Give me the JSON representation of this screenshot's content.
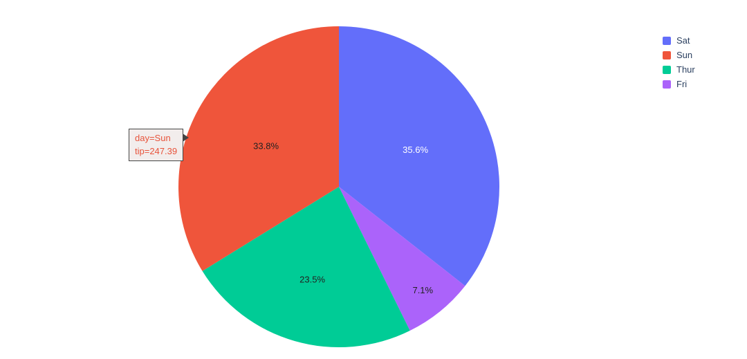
{
  "chart_data": {
    "type": "pie",
    "title": "",
    "slices": [
      {
        "label": "Sat",
        "value": 35.6,
        "pct_label": "35.6%",
        "color": "#636EFA",
        "text_color": "#ffffff",
        "label_radius_frac": 0.53
      },
      {
        "label": "Sun",
        "value": 33.8,
        "pct_label": "33.8%",
        "color": "#EF553B",
        "text_color": "#222222",
        "label_radius_frac": 0.52
      },
      {
        "label": "Thur",
        "value": 23.5,
        "pct_label": "23.5%",
        "color": "#00CC96",
        "text_color": "#222222",
        "label_radius_frac": 0.6
      },
      {
        "label": "Fri",
        "value": 7.1,
        "pct_label": "7.1%",
        "color": "#AB63FA",
        "text_color": "#222222",
        "label_radius_frac": 0.83
      }
    ],
    "draw_order_clockwise_from_top": [
      "Sat",
      "Fri",
      "Thur",
      "Sun"
    ],
    "legend": {
      "position": "top-right",
      "items": [
        "Sat",
        "Sun",
        "Thur",
        "Fri"
      ],
      "text_color": "#2a3f5f"
    },
    "tooltip": {
      "line1": "day=Sun",
      "line2": "tip=247.39",
      "target_slice": "Sun",
      "bg_color": "#F2EDEC",
      "border_color": "#444444",
      "text_color": "#E8533B"
    }
  }
}
